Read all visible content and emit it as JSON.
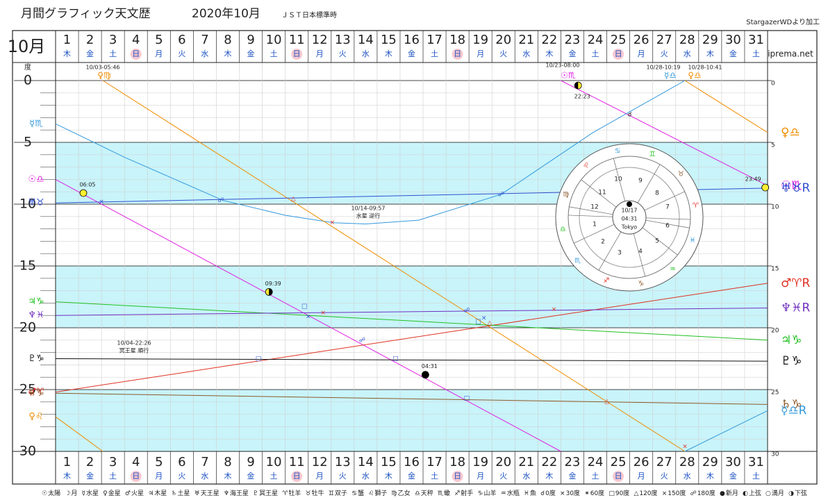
{
  "chart_data": {
    "type": "line",
    "title": "月間グラフィック天文歴",
    "subtitle": "2020年10月",
    "timezone": "ＪＳＴ日本標準時",
    "credit": "StargazerWDより加工",
    "month_label": "10月",
    "site": "iprema.net",
    "y_unit": "度",
    "categories": [
      1,
      2,
      3,
      4,
      5,
      6,
      7,
      8,
      9,
      10,
      11,
      12,
      13,
      14,
      15,
      16,
      17,
      18,
      19,
      20,
      21,
      22,
      23,
      24,
      25,
      26,
      27,
      28,
      29,
      30,
      31
    ],
    "weekdays": [
      "木",
      "金",
      "土",
      "日",
      "月",
      "火",
      "水",
      "木",
      "金",
      "土",
      "日",
      "月",
      "火",
      "水",
      "木",
      "金",
      "土",
      "日",
      "月",
      "火",
      "水",
      "木",
      "金",
      "土",
      "日",
      "月",
      "火",
      "水",
      "木",
      "金",
      "土"
    ],
    "highlighted_days": [
      4,
      11,
      18,
      25
    ],
    "highlight_color": "#f8c8d0",
    "weekday_color": "#1a50c0",
    "xlim": [
      0,
      31
    ],
    "ylim": [
      0,
      30
    ],
    "y_reversed": true,
    "yticks": [
      0,
      5,
      10,
      15,
      20,
      25,
      30
    ],
    "bands": [
      [
        5,
        10
      ],
      [
        15,
        20
      ],
      [
        25,
        30
      ]
    ],
    "band_color": "#c8f4fa",
    "series": [
      {
        "color": "#e020e0",
        "label_start": "☉♎",
        "label_end": "☉♏",
        "x": [
          0,
          22,
          22,
          22,
          31
        ],
        "values": [
          8,
          30,
          null,
          0,
          8.5
        ]
      },
      {
        "color": "#3399dd",
        "label_start": "☿♏",
        "label_end": "☿♎R",
        "x": [
          0,
          3,
          7.3,
          10,
          12.1,
          13.5,
          15.8,
          19.4,
          23.4,
          27.4,
          27.4,
          27.4,
          31
        ],
        "values": [
          3.5,
          6.2,
          9.7,
          10.9,
          11.5,
          11.6,
          11.3,
          9.2,
          4.2,
          0,
          null,
          30,
          26.7
        ]
      },
      {
        "color": "#f08c00",
        "label_start": "♀♌",
        "label_end": "♀♎",
        "x": [
          0,
          2.06,
          2.06,
          2.06,
          27.4,
          27.4,
          27.4,
          31
        ],
        "values": [
          27.2,
          30,
          null,
          0,
          30,
          null,
          0,
          4.2
        ]
      },
      {
        "color": "#e03020",
        "label_start": "♂♈",
        "label_end": "♂♈R",
        "x": [
          0,
          31
        ],
        "values": [
          25.2,
          16.4
        ]
      },
      {
        "color": "#20c020",
        "label_start": "♃♑",
        "label_end": "♃♑",
        "x": [
          0,
          31
        ],
        "values": [
          17.9,
          21
        ]
      },
      {
        "color": "#8b5a2b",
        "label_start": "♄♑",
        "label_end": "♄♑",
        "x": [
          0,
          31
        ],
        "values": [
          25.3,
          26.2
        ]
      },
      {
        "color": "#3050d0",
        "label_start": "♅♉",
        "label_end": "♅♉R",
        "x": [
          0,
          31
        ],
        "values": [
          9.9,
          8.7
        ]
      },
      {
        "color": "#7030c0",
        "label_start": "♆♓",
        "label_end": "♆♓R",
        "x": [
          0,
          31
        ],
        "values": [
          19,
          18.4
        ]
      },
      {
        "color": "#111111",
        "label_start": "♇♑",
        "label_end": "♇♑",
        "x": [
          0,
          31
        ],
        "values": [
          22.5,
          22.7
        ]
      }
    ],
    "aspects": [
      {
        "symbol": "×",
        "color": "#3050d0",
        "x": 2.0,
        "y": 9.8
      },
      {
        "symbol": "☍",
        "color": "#3050d0",
        "x": 7.2,
        "y": 9.7
      },
      {
        "symbol": "△",
        "color": "#e03020",
        "x": 10.35,
        "y": 9.55
      },
      {
        "symbol": "×",
        "color": "#e03020",
        "x": 12.05,
        "y": 11.5
      },
      {
        "symbol": "☍",
        "color": "#3050d0",
        "x": 19.4,
        "y": 9.2
      },
      {
        "symbol": "☌",
        "color": "#111111",
        "x": 25.0,
        "y": 2.75
      },
      {
        "symbol": "□",
        "color": "#3050d0",
        "x": 10.83,
        "y": 18.25
      },
      {
        "symbol": "×",
        "color": "#3050d0",
        "x": 11.0,
        "y": 19.1
      },
      {
        "symbol": "×",
        "color": "#e03020",
        "x": 11.65,
        "y": 18.8
      },
      {
        "symbol": "☍",
        "color": "#3050d0",
        "x": 13.35,
        "y": 21.0
      },
      {
        "symbol": "□",
        "color": "#3050d0",
        "x": 8.83,
        "y": 22.5
      },
      {
        "symbol": "□",
        "color": "#3050d0",
        "x": 14.8,
        "y": 22.5
      },
      {
        "symbol": "☍",
        "color": "#3050d0",
        "x": 17.9,
        "y": 18.6
      },
      {
        "symbol": "□",
        "color": "#3050d0",
        "x": 18.4,
        "y": 19.5
      },
      {
        "symbol": "×",
        "color": "#3050d0",
        "x": 18.65,
        "y": 19.2
      },
      {
        "symbol": "△",
        "color": "#e03020",
        "x": 18.9,
        "y": 19.6
      },
      {
        "symbol": "×",
        "color": "#e03020",
        "x": 21.7,
        "y": 18.5
      },
      {
        "symbol": "△",
        "color": "#e03020",
        "x": 24.0,
        "y": 25.95
      },
      {
        "symbol": "□",
        "color": "#3050d0",
        "x": 17.9,
        "y": 25.7
      },
      {
        "symbol": "×",
        "color": "#e03020",
        "x": 27.4,
        "y": 29.6
      }
    ],
    "moon_phases": [
      {
        "time": "06:05",
        "x": 1.21,
        "y": 9.1,
        "fill": "#ffee33",
        "half": "none"
      },
      {
        "time": "09:39",
        "x": 9.29,
        "y": 17.1,
        "fill": "#ffee33",
        "half": "right"
      },
      {
        "time": "04:31",
        "x": 16.1,
        "y": 23.8,
        "fill": "#000000",
        "half": "none"
      },
      {
        "time": "22:23",
        "x": 22.75,
        "y": 0.4,
        "fill": "#ffee33",
        "half": "left"
      },
      {
        "time": "23:49",
        "x": 30.9,
        "y": 8.65,
        "fill": "#ffee33",
        "half": "none"
      }
    ],
    "ingresses": [
      {
        "time": "10/03-05:46",
        "label": "♀♍"
      },
      {
        "time": "10/23-08:00",
        "label": "☉♏"
      },
      {
        "time": "10/28-10:19",
        "label": "☿♎"
      },
      {
        "time": "10/28-10:41",
        "label": "♀♎"
      }
    ],
    "stations": [
      {
        "time": "10/14-09:57",
        "label": "水星 逆行"
      },
      {
        "time": "10/04-22:26",
        "label": "冥王星 順行"
      }
    ],
    "horoscope": {
      "date": "10/17",
      "time": "04:31",
      "place": "Tokyo",
      "houses": [
        1,
        2,
        3,
        4,
        5,
        6,
        7,
        8,
        9,
        10,
        11,
        12
      ],
      "signs": [
        "♋",
        "♊",
        "♉",
        "♈",
        "♓",
        "♒",
        "♑",
        "♐",
        "♏",
        "♎",
        "♍",
        "♌"
      ]
    },
    "legend": [
      {
        "symbol": "☉",
        "text": "太陽"
      },
      {
        "symbol": "☽",
        "text": "月"
      },
      {
        "symbol": "☿",
        "text": "水星"
      },
      {
        "symbol": "♀",
        "text": "金星"
      },
      {
        "symbol": "♂",
        "text": "火星"
      },
      {
        "symbol": "♃",
        "text": "木星"
      },
      {
        "symbol": "♄",
        "text": "土星"
      },
      {
        "symbol": "♅",
        "text": "天王星"
      },
      {
        "symbol": "♆",
        "text": "海王星"
      },
      {
        "symbol": "♇",
        "text": "冥王星"
      },
      {
        "symbol": "♈",
        "text": "牡羊"
      },
      {
        "symbol": "♉",
        "text": "牡牛"
      },
      {
        "symbol": "♊",
        "text": "双子"
      },
      {
        "symbol": "♋",
        "text": "蟹"
      },
      {
        "symbol": "♌",
        "text": "獅子"
      },
      {
        "symbol": "♍",
        "text": "乙女"
      },
      {
        "symbol": "♎",
        "text": "天秤"
      },
      {
        "symbol": "♏",
        "text": "蠍"
      },
      {
        "symbol": "♐",
        "text": "射手"
      },
      {
        "symbol": "♑",
        "text": "山羊"
      },
      {
        "symbol": "♒",
        "text": "水瓶"
      },
      {
        "symbol": "♓",
        "text": "魚"
      },
      {
        "symbol": "☌",
        "text": "0度"
      },
      {
        "symbol": "×",
        "text": "30度"
      },
      {
        "symbol": "✶",
        "text": "60度"
      },
      {
        "symbol": "□",
        "text": "90度"
      },
      {
        "symbol": "△",
        "text": "120度"
      },
      {
        "symbol": "⨯",
        "text": "150度"
      },
      {
        "symbol": "☍",
        "text": "180度"
      },
      {
        "symbol": "●",
        "text": "新月"
      },
      {
        "symbol": "◐",
        "text": "上弦"
      },
      {
        "symbol": "○",
        "text": "満月"
      },
      {
        "symbol": "◑",
        "text": "下弦"
      }
    ]
  }
}
